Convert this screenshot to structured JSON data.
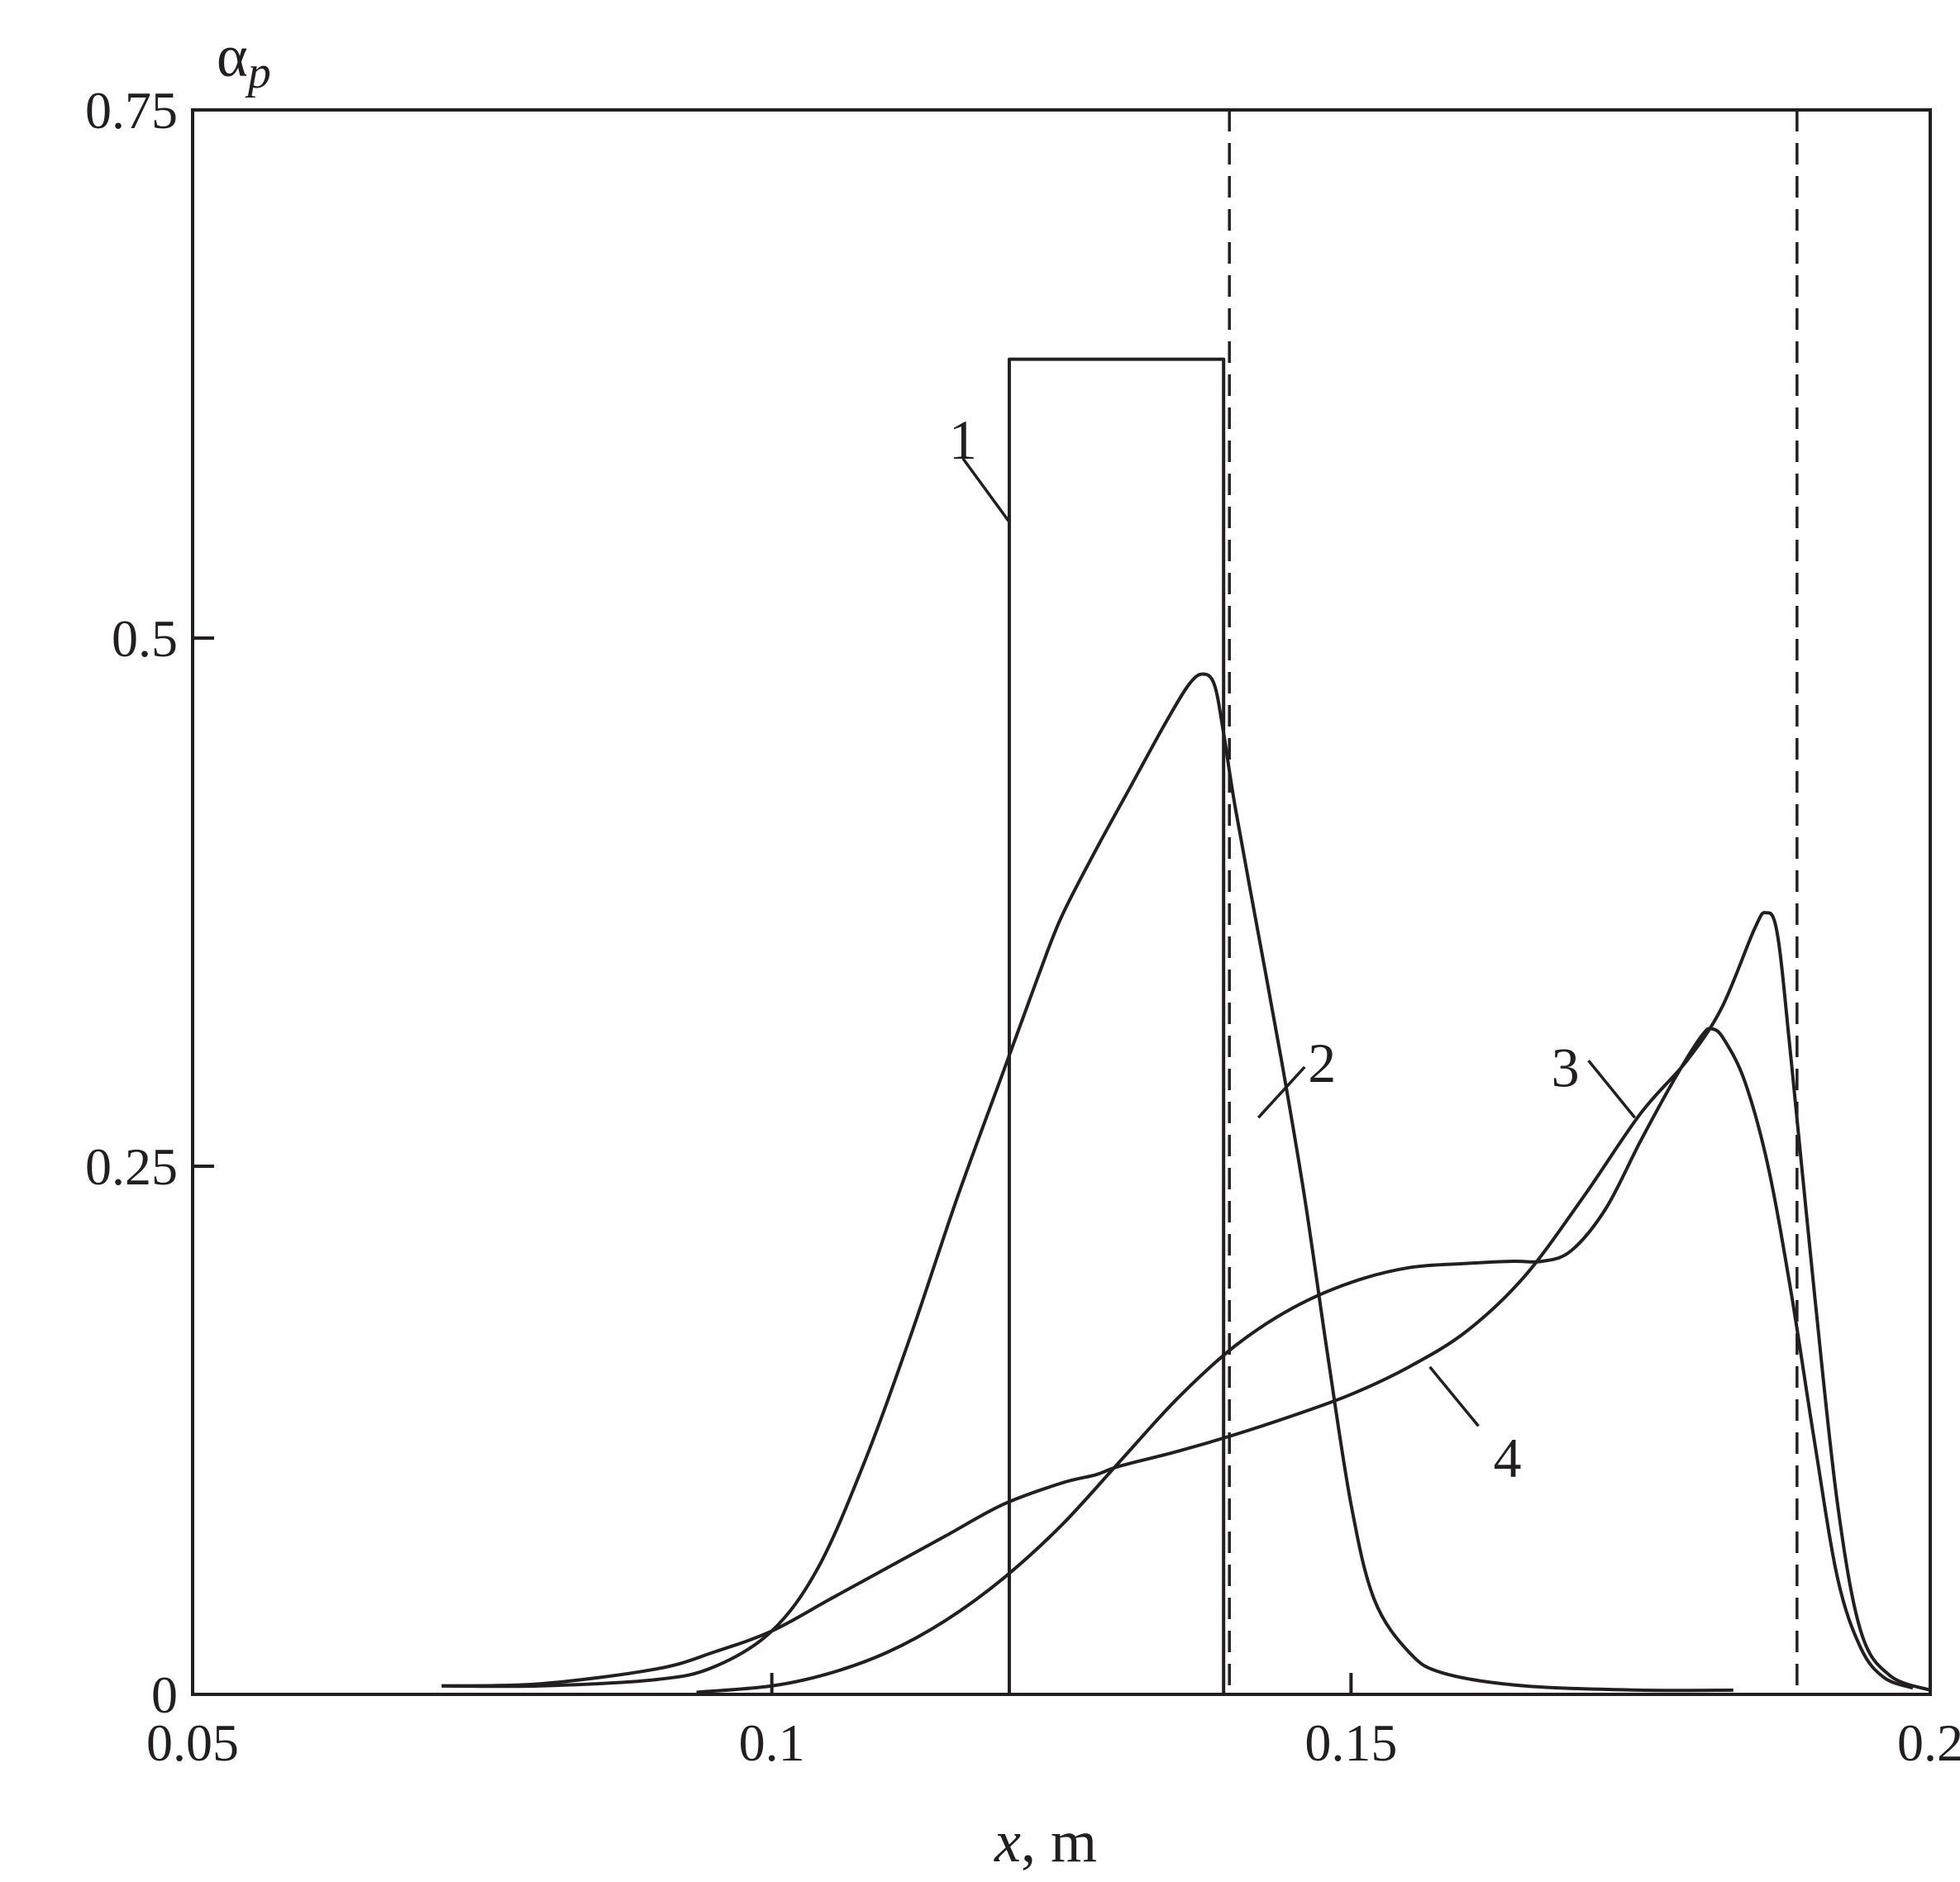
{
  "chart_data": {
    "type": "line",
    "xlabel": {
      "var": "x",
      "unit": ", m"
    },
    "ylabel": {
      "base": "α",
      "sub": "p"
    },
    "xlim": [
      0.05,
      0.2
    ],
    "ylim": [
      0,
      0.75
    ],
    "x_ticks": [
      {
        "value": 0.05,
        "label": "0.05"
      },
      {
        "value": 0.1,
        "label": "0.1"
      },
      {
        "value": 0.15,
        "label": "0.15"
      },
      {
        "value": 0.2,
        "label": "0.2"
      }
    ],
    "y_ticks": [
      {
        "value": 0,
        "label": "0"
      },
      {
        "value": 0.25,
        "label": "0.25"
      },
      {
        "value": 0.5,
        "label": "0.5"
      },
      {
        "value": 0.75,
        "label": "0.75"
      }
    ],
    "grid": false,
    "colors": {
      "line": "#231f20",
      "background": "#ffffff"
    },
    "vlines_dashed": [
      0.1395,
      0.1885
    ],
    "series": [
      {
        "label": "1",
        "points": [
          [
            0.1205,
            0
          ],
          [
            0.1205,
            0.632
          ],
          [
            0.139,
            0.632
          ],
          [
            0.139,
            0
          ]
        ],
        "label_pos": [
          0.1165,
          0.595
        ],
        "leader": [
          [
            0.1165,
            0.585
          ],
          [
            0.1205,
            0.555
          ]
        ]
      },
      {
        "label": "2",
        "points": [
          [
            0.0715,
            0.004
          ],
          [
            0.08,
            0.004
          ],
          [
            0.09,
            0.007
          ],
          [
            0.095,
            0.013
          ],
          [
            0.1,
            0.03
          ],
          [
            0.104,
            0.06
          ],
          [
            0.108,
            0.11
          ],
          [
            0.112,
            0.17
          ],
          [
            0.116,
            0.235
          ],
          [
            0.12,
            0.295
          ],
          [
            0.123,
            0.34
          ],
          [
            0.125,
            0.368
          ],
          [
            0.128,
            0.4
          ],
          [
            0.131,
            0.43
          ],
          [
            0.134,
            0.46
          ],
          [
            0.136,
            0.478
          ],
          [
            0.1372,
            0.483
          ],
          [
            0.1382,
            0.478
          ],
          [
            0.139,
            0.455
          ],
          [
            0.14,
            0.42
          ],
          [
            0.142,
            0.36
          ],
          [
            0.144,
            0.3
          ],
          [
            0.146,
            0.235
          ],
          [
            0.148,
            0.16
          ],
          [
            0.15,
            0.09
          ],
          [
            0.152,
            0.045
          ],
          [
            0.155,
            0.02
          ],
          [
            0.158,
            0.01
          ],
          [
            0.165,
            0.004
          ],
          [
            0.175,
            0.002
          ],
          [
            0.183,
            0.002
          ]
        ],
        "label_pos": [
          0.1475,
          0.3
        ],
        "leader": [
          [
            0.146,
            0.297
          ],
          [
            0.142,
            0.273
          ]
        ]
      },
      {
        "label": "3",
        "points": [
          [
            0.0935,
            0.001
          ],
          [
            0.1,
            0.004
          ],
          [
            0.105,
            0.01
          ],
          [
            0.11,
            0.02
          ],
          [
            0.115,
            0.035
          ],
          [
            0.12,
            0.055
          ],
          [
            0.125,
            0.08
          ],
          [
            0.13,
            0.11
          ],
          [
            0.135,
            0.14
          ],
          [
            0.14,
            0.165
          ],
          [
            0.145,
            0.183
          ],
          [
            0.15,
            0.195
          ],
          [
            0.155,
            0.202
          ],
          [
            0.16,
            0.204
          ],
          [
            0.164,
            0.205
          ],
          [
            0.1665,
            0.205
          ],
          [
            0.169,
            0.21
          ],
          [
            0.172,
            0.23
          ],
          [
            0.175,
            0.262
          ],
          [
            0.178,
            0.292
          ],
          [
            0.1803,
            0.312
          ],
          [
            0.1812,
            0.315
          ],
          [
            0.1822,
            0.31
          ],
          [
            0.184,
            0.29
          ],
          [
            0.186,
            0.25
          ],
          [
            0.188,
            0.19
          ],
          [
            0.19,
            0.12
          ],
          [
            0.192,
            0.055
          ],
          [
            0.194,
            0.022
          ],
          [
            0.196,
            0.008
          ],
          [
            0.1985,
            0.003
          ]
        ],
        "label_pos": [
          0.1685,
          0.298
        ],
        "leader": [
          [
            0.1705,
            0.3
          ],
          [
            0.1745,
            0.273
          ]
        ]
      },
      {
        "label": "4",
        "points": [
          [
            0.0715,
            0.004
          ],
          [
            0.08,
            0.005
          ],
          [
            0.09,
            0.012
          ],
          [
            0.095,
            0.02
          ],
          [
            0.1,
            0.03
          ],
          [
            0.105,
            0.045
          ],
          [
            0.11,
            0.06
          ],
          [
            0.115,
            0.075
          ],
          [
            0.12,
            0.09
          ],
          [
            0.125,
            0.1
          ],
          [
            0.128,
            0.104
          ],
          [
            0.13,
            0.108
          ],
          [
            0.135,
            0.115
          ],
          [
            0.14,
            0.123
          ],
          [
            0.145,
            0.132
          ],
          [
            0.15,
            0.142
          ],
          [
            0.155,
            0.155
          ],
          [
            0.16,
            0.172
          ],
          [
            0.165,
            0.198
          ],
          [
            0.17,
            0.235
          ],
          [
            0.175,
            0.275
          ],
          [
            0.179,
            0.3
          ],
          [
            0.182,
            0.325
          ],
          [
            0.1848,
            0.362
          ],
          [
            0.1858,
            0.37
          ],
          [
            0.1868,
            0.36
          ],
          [
            0.188,
            0.3
          ],
          [
            0.19,
            0.19
          ],
          [
            0.192,
            0.09
          ],
          [
            0.194,
            0.03
          ],
          [
            0.1965,
            0.009
          ],
          [
            0.2,
            0.002
          ]
        ],
        "label_pos": [
          0.1635,
          0.113
        ],
        "leader": [
          [
            0.161,
            0.127
          ],
          [
            0.1568,
            0.155
          ]
        ]
      }
    ]
  }
}
